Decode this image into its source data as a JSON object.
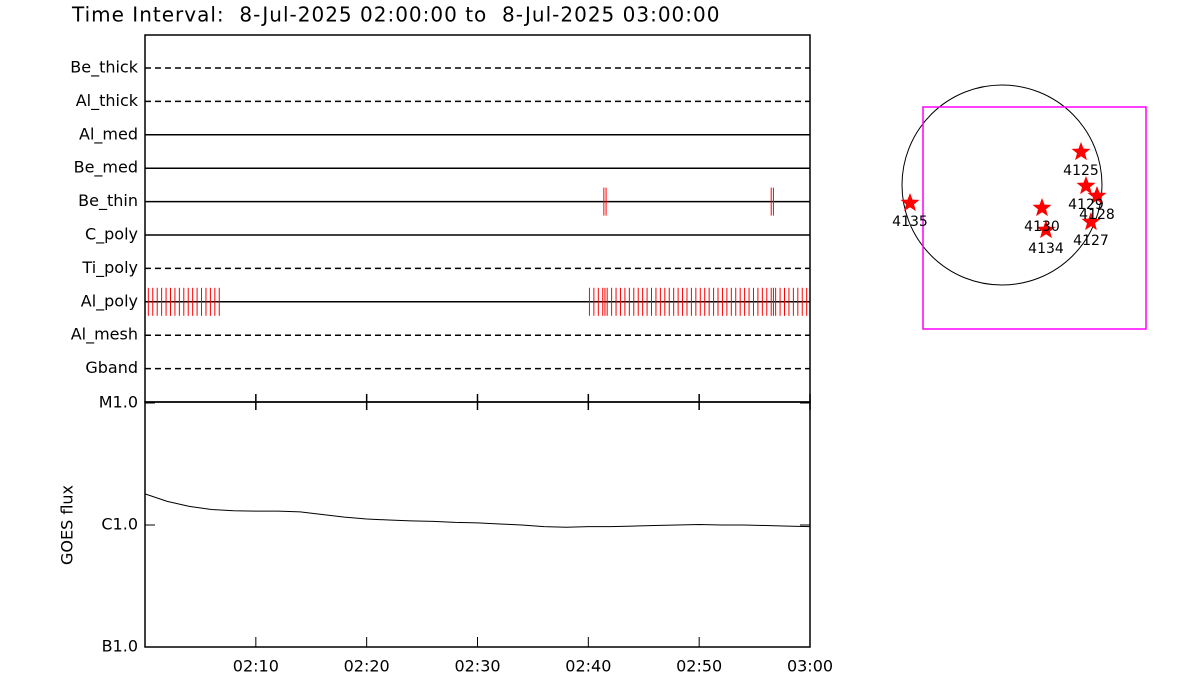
{
  "chart_data": [
    {
      "type": "timeline",
      "title": "Time Interval:  8-Jul-2025 02:00:00 to  8-Jul-2025 03:00:00",
      "xlim": [
        0,
        60
      ],
      "event_color": "#ff0000",
      "rows": [
        {
          "name": "Be_thick",
          "style": "dashed",
          "x": []
        },
        {
          "name": "Al_thick",
          "style": "dashed",
          "x": []
        },
        {
          "name": "Al_med",
          "style": "solid",
          "x": []
        },
        {
          "name": "Be_med",
          "style": "solid",
          "x": []
        },
        {
          "name": "Be_thin",
          "style": "solid",
          "x": [
            41.4,
            41.6,
            56.5,
            56.7
          ]
        },
        {
          "name": "C_poly",
          "style": "solid",
          "x": []
        },
        {
          "name": "Ti_poly",
          "style": "dashed",
          "x": []
        },
        {
          "name": "Al_poly",
          "style": "solid",
          "x": [
            0.3,
            0.7,
            1.1,
            1.5,
            1.9,
            2.3,
            2.7,
            3.1,
            3.5,
            3.9,
            4.3,
            4.7,
            5.1,
            5.5,
            5.9,
            6.3,
            6.7,
            40.1,
            40.5,
            40.9,
            41.3,
            41.5,
            41.7,
            42.1,
            42.5,
            42.9,
            43.3,
            43.7,
            44.1,
            44.5,
            44.9,
            45.3,
            45.7,
            46.1,
            46.5,
            46.9,
            47.3,
            47.7,
            48.1,
            48.5,
            48.9,
            49.3,
            49.7,
            50.1,
            50.5,
            50.9,
            51.3,
            51.7,
            52.1,
            52.5,
            52.9,
            53.3,
            53.7,
            54.1,
            54.5,
            54.9,
            55.3,
            55.7,
            56.1,
            56.5,
            56.7,
            56.9,
            57.3,
            57.7,
            58.1,
            58.5,
            58.9,
            59.3,
            59.7
          ]
        },
        {
          "name": "Al_mesh",
          "style": "dashed",
          "x": []
        },
        {
          "name": "Gband",
          "style": "dashed",
          "x": []
        }
      ]
    },
    {
      "type": "line",
      "ylabel": "GOES flux",
      "log_y": true,
      "color": "#000000",
      "xlim": [
        0,
        60
      ],
      "xticks": [
        {
          "value": 10,
          "label": "02:10"
        },
        {
          "value": 20,
          "label": "02:20"
        },
        {
          "value": 30,
          "label": "02:30"
        },
        {
          "value": 40,
          "label": "02:40"
        },
        {
          "value": 50,
          "label": "02:50"
        },
        {
          "value": 60,
          "label": "03:00"
        }
      ],
      "ylim": [
        1e-07,
        1e-05
      ],
      "yticks": [
        {
          "value": 1e-07,
          "label": "B1.0"
        },
        {
          "value": 1e-06,
          "label": "C1.0"
        },
        {
          "value": 1e-05,
          "label": "M1.0"
        }
      ],
      "x": [
        0,
        2,
        4,
        6,
        8,
        10,
        12,
        14,
        16,
        18,
        20,
        22,
        24,
        26,
        28,
        30,
        32,
        34,
        36,
        38,
        40,
        42,
        44,
        46,
        48,
        50,
        52,
        54,
        56,
        58,
        60
      ],
      "values": [
        1.8e-06,
        1.56e-06,
        1.42e-06,
        1.34e-06,
        1.31e-06,
        1.3e-06,
        1.3e-06,
        1.28e-06,
        1.22e-06,
        1.16e-06,
        1.12e-06,
        1.1e-06,
        1.08e-06,
        1.07e-06,
        1.05e-06,
        1.04e-06,
        1.02e-06,
        1e-06,
        9.7e-07,
        9.6e-07,
        9.7e-07,
        9.7e-07,
        9.8e-07,
        9.9e-07,
        1e-06,
        1.01e-06,
        1e-06,
        1e-06,
        9.9e-07,
        9.8e-07,
        9.7e-07
      ]
    },
    {
      "type": "sun_map",
      "disk_color": "#000000",
      "fov_color": "#ff00ff",
      "marker_color": "#ff0000",
      "fov": [
        -0.79,
        0.78,
        1.44,
        -1.44
      ],
      "points": [
        {
          "label": "4125",
          "x": 0.79,
          "y": 0.33
        },
        {
          "label": "4129",
          "x": 0.84,
          "y": -0.01
        },
        {
          "label": "4128",
          "x": 0.95,
          "y": -0.11
        },
        {
          "label": "4130",
          "x": 0.4,
          "y": -0.23
        },
        {
          "label": "4134",
          "x": 0.44,
          "y": -0.45
        },
        {
          "label": "4127",
          "x": 0.89,
          "y": -0.37
        },
        {
          "label": "4135",
          "x": -0.92,
          "y": -0.18
        }
      ]
    }
  ]
}
